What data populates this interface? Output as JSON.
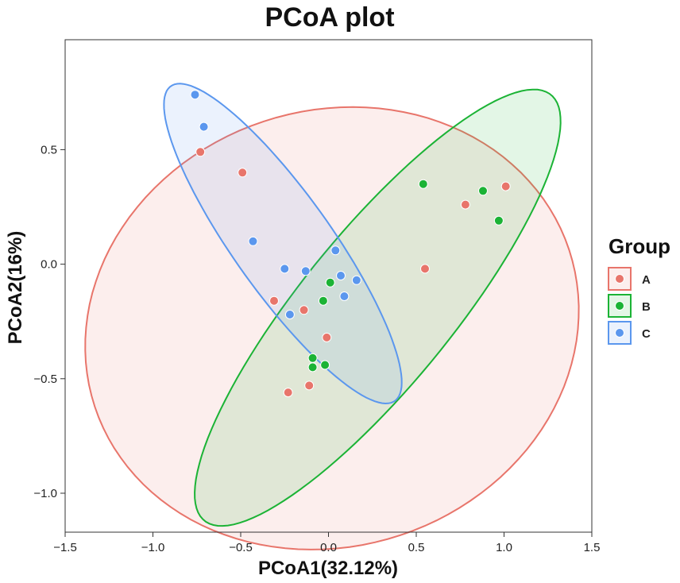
{
  "chart_data": {
    "type": "scatter",
    "title": "PCoA plot",
    "xlabel": "PCoA1(32.12%)",
    "ylabel": "PCoA2(16%)",
    "xlim": [
      -1.5,
      1.5
    ],
    "ylim": [
      -1.17,
      0.98
    ],
    "xticks": [
      -1.5,
      -1.0,
      -0.5,
      0.0,
      0.5,
      1.0,
      1.5
    ],
    "xtick_labels": [
      "-1.5",
      "-1.0",
      "-0.5",
      "0.0",
      "0.5",
      "1.0",
      "1.5"
    ],
    "yticks": [
      -1.0,
      -0.5,
      0.0,
      0.5
    ],
    "ytick_labels": [
      "-1.0",
      "-0.5",
      "0.0",
      "0.5"
    ],
    "grid": false,
    "legend": {
      "title": "Group",
      "position": "right"
    },
    "series": [
      {
        "name": "A",
        "color": "#E8756B",
        "points": [
          [
            -0.73,
            0.49
          ],
          [
            -0.49,
            0.4
          ],
          [
            -0.31,
            -0.16
          ],
          [
            -0.14,
            -0.2
          ],
          [
            -0.23,
            -0.56
          ],
          [
            -0.11,
            -0.53
          ],
          [
            -0.01,
            -0.32
          ],
          [
            0.55,
            -0.02
          ],
          [
            0.78,
            0.26
          ],
          [
            1.01,
            0.34
          ]
        ],
        "ellipse": {
          "cx": 0.02,
          "cy": -0.28,
          "rx": 1.41,
          "ry": 0.96,
          "angle_deg": 6
        }
      },
      {
        "name": "B",
        "color": "#1BB335",
        "points": [
          [
            0.54,
            0.35
          ],
          [
            0.88,
            0.32
          ],
          [
            0.97,
            0.19
          ],
          [
            0.01,
            -0.08
          ],
          [
            -0.03,
            -0.16
          ],
          [
            -0.09,
            -0.41
          ],
          [
            -0.09,
            -0.45
          ],
          [
            -0.02,
            -0.44
          ]
        ],
        "ellipse": {
          "cx": 0.28,
          "cy": -0.19,
          "rx": 1.36,
          "ry": 0.38,
          "angle_deg": 42
        }
      },
      {
        "name": "C",
        "color": "#5B97EE",
        "points": [
          [
            -0.76,
            0.74
          ],
          [
            -0.71,
            0.6
          ],
          [
            -0.43,
            0.1
          ],
          [
            -0.25,
            -0.02
          ],
          [
            -0.22,
            -0.22
          ],
          [
            -0.13,
            -0.03
          ],
          [
            0.04,
            0.06
          ],
          [
            0.07,
            -0.05
          ],
          [
            0.09,
            -0.14
          ],
          [
            0.16,
            -0.07
          ]
        ],
        "ellipse": {
          "cx": -0.26,
          "cy": 0.09,
          "rx": 0.94,
          "ry": 0.25,
          "angle_deg": -46
        }
      }
    ]
  }
}
